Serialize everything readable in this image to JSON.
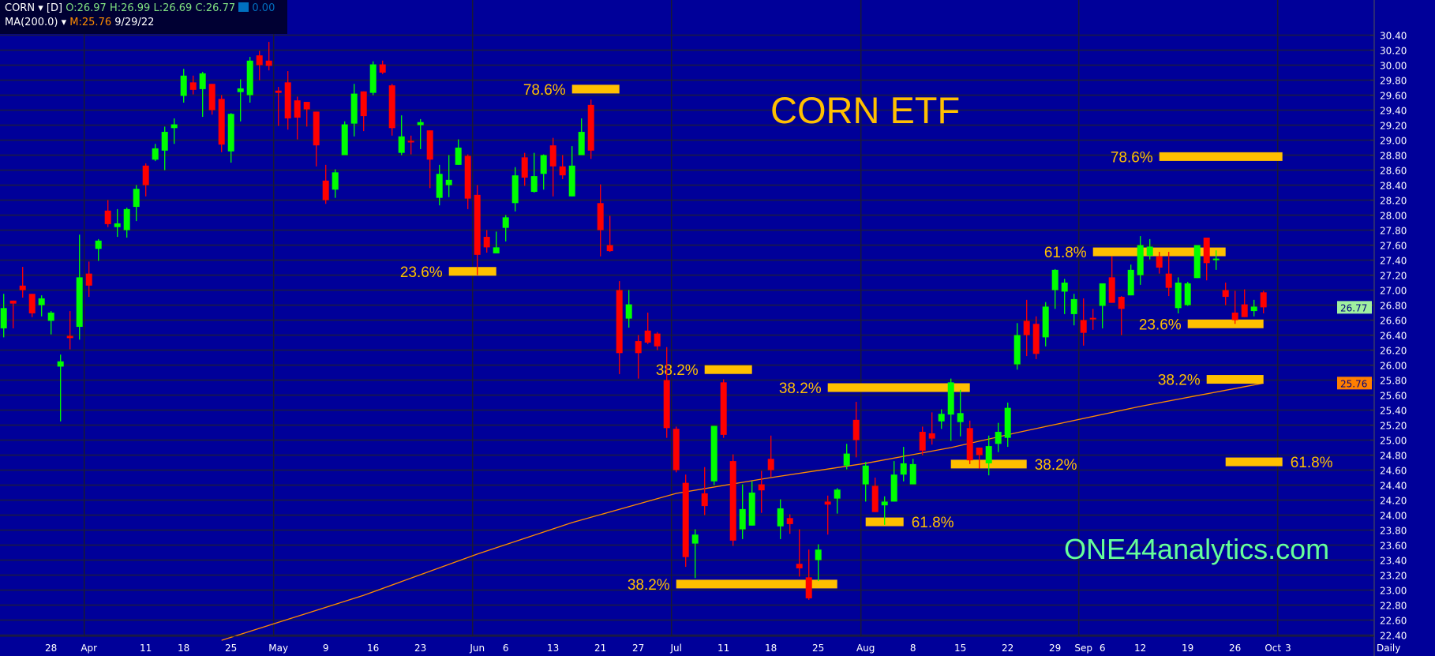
{
  "header": {
    "symbol": "CORN",
    "interval": "[D]",
    "open": "O:26.97",
    "high": "H:26.99",
    "low": "L:26.69",
    "close": "C:26.77",
    "change": "0.00",
    "ma_name": "MA(200.0)",
    "ma_value": "M:25.76",
    "date": "9/29/22"
  },
  "colors": {
    "background": "#000099",
    "up": "#00ff00",
    "down": "#ff0000",
    "fib": "#ffc000",
    "ma": "#ff8c00",
    "watermark": "#66ff99",
    "grid": "#1c1c40"
  },
  "title": "CORN ETF",
  "watermark": "ONE44analytics.com",
  "chart_data": {
    "type": "candlestick",
    "symbol": "CORN",
    "period": "Daily",
    "ylim": [
      22.3,
      30.5
    ],
    "last_price": "26.77",
    "ma_last": "25.76",
    "y_ticks": [
      "30.40",
      "30.20",
      "30.00",
      "29.80",
      "29.60",
      "29.40",
      "29.20",
      "29.00",
      "28.80",
      "28.60",
      "28.40",
      "28.20",
      "28.00",
      "27.80",
      "27.60",
      "27.40",
      "27.20",
      "27.00",
      "26.80",
      "26.60",
      "26.40",
      "26.20",
      "26.00",
      "25.80",
      "25.60",
      "25.40",
      "25.20",
      "25.00",
      "24.80",
      "24.60",
      "24.40",
      "24.20",
      "24.00",
      "23.80",
      "23.60",
      "23.40",
      "23.20",
      "23.00",
      "22.80",
      "22.60",
      "22.40"
    ],
    "x_ticks": [
      {
        "label": "28",
        "i": 5
      },
      {
        "label": "Apr",
        "i": 9
      },
      {
        "label": "11",
        "i": 15
      },
      {
        "label": "18",
        "i": 19
      },
      {
        "label": "25",
        "i": 24
      },
      {
        "label": "May",
        "i": 29
      },
      {
        "label": "9",
        "i": 34
      },
      {
        "label": "16",
        "i": 39
      },
      {
        "label": "23",
        "i": 44
      },
      {
        "label": "Jun",
        "i": 50
      },
      {
        "label": "6",
        "i": 53
      },
      {
        "label": "13",
        "i": 58
      },
      {
        "label": "21",
        "i": 63
      },
      {
        "label": "27",
        "i": 67
      },
      {
        "label": "Jul",
        "i": 71
      },
      {
        "label": "11",
        "i": 76
      },
      {
        "label": "18",
        "i": 81
      },
      {
        "label": "25",
        "i": 86
      },
      {
        "label": "Aug",
        "i": 91
      },
      {
        "label": "8",
        "i": 96
      },
      {
        "label": "15",
        "i": 101
      },
      {
        "label": "22",
        "i": 106
      },
      {
        "label": "29",
        "i": 111
      },
      {
        "label": "Sep",
        "i": 114
      },
      {
        "label": "6",
        "i": 116
      },
      {
        "label": "12",
        "i": 120
      },
      {
        "label": "19",
        "i": 125
      },
      {
        "label": "26",
        "i": 130
      },
      {
        "label": "Oct",
        "i": 134
      },
      {
        "label": "3",
        "i": 135
      }
    ],
    "month_separators": [
      9,
      29,
      50,
      71,
      91,
      114,
      135
    ],
    "candles_columns": [
      "open",
      "high",
      "low",
      "close",
      "color"
    ],
    "candles": [
      [
        26.49,
        26.95,
        26.37,
        26.76,
        "g"
      ],
      [
        26.86,
        26.86,
        26.49,
        26.82,
        "r"
      ],
      [
        27.06,
        27.31,
        26.9,
        27.0,
        "r"
      ],
      [
        26.95,
        26.95,
        26.64,
        26.69,
        "r"
      ],
      [
        26.8,
        26.93,
        26.65,
        26.89,
        "g"
      ],
      [
        26.59,
        26.72,
        26.41,
        26.7,
        "g"
      ],
      [
        25.98,
        26.14,
        25.25,
        26.05,
        "g"
      ],
      [
        26.39,
        26.72,
        26.21,
        26.36,
        "r"
      ],
      [
        26.51,
        27.74,
        26.34,
        27.17,
        "g"
      ],
      [
        27.22,
        27.38,
        26.91,
        27.06,
        "r"
      ],
      [
        27.55,
        27.68,
        27.39,
        27.66,
        "g"
      ],
      [
        28.06,
        28.2,
        27.84,
        27.88,
        "r"
      ],
      [
        27.84,
        28.08,
        27.71,
        27.89,
        "g"
      ],
      [
        27.8,
        28.1,
        27.7,
        28.08,
        "g"
      ],
      [
        28.11,
        28.4,
        27.92,
        28.35,
        "g"
      ],
      [
        28.66,
        28.69,
        28.25,
        28.4,
        "r"
      ],
      [
        28.74,
        28.95,
        28.72,
        28.89,
        "g"
      ],
      [
        28.86,
        29.18,
        28.6,
        29.11,
        "g"
      ],
      [
        29.16,
        29.29,
        28.95,
        29.21,
        "g"
      ],
      [
        29.59,
        29.95,
        29.5,
        29.86,
        "g"
      ],
      [
        29.77,
        29.86,
        29.61,
        29.67,
        "r"
      ],
      [
        29.68,
        29.91,
        29.31,
        29.89,
        "g"
      ],
      [
        29.75,
        29.75,
        29.34,
        29.4,
        "r"
      ],
      [
        29.55,
        29.6,
        28.84,
        28.94,
        "r"
      ],
      [
        28.85,
        29.36,
        28.7,
        29.35,
        "g"
      ],
      [
        29.64,
        29.81,
        29.25,
        29.69,
        "g"
      ],
      [
        29.6,
        30.11,
        29.5,
        30.06,
        "g"
      ],
      [
        30.13,
        30.19,
        29.8,
        30.0,
        "r"
      ],
      [
        30.06,
        30.31,
        29.93,
        29.99,
        "r"
      ],
      [
        29.66,
        29.71,
        29.19,
        29.63,
        "r"
      ],
      [
        29.77,
        29.92,
        29.14,
        29.29,
        "r"
      ],
      [
        29.53,
        29.58,
        29.01,
        29.3,
        "r"
      ],
      [
        29.51,
        29.51,
        29.18,
        29.41,
        "r"
      ],
      [
        29.38,
        29.38,
        28.65,
        28.93,
        "r"
      ],
      [
        28.46,
        28.67,
        28.15,
        28.2,
        "r"
      ],
      [
        28.34,
        28.61,
        28.23,
        28.57,
        "g"
      ],
      [
        28.8,
        29.25,
        28.8,
        29.21,
        "g"
      ],
      [
        29.22,
        29.75,
        29.05,
        29.62,
        "g"
      ],
      [
        29.65,
        29.65,
        29.12,
        29.32,
        "r"
      ],
      [
        29.63,
        30.05,
        29.6,
        30.01,
        "g"
      ],
      [
        30.01,
        30.06,
        29.88,
        29.9,
        "r"
      ],
      [
        29.73,
        29.75,
        29.06,
        29.16,
        "r"
      ],
      [
        28.83,
        29.33,
        28.8,
        29.05,
        "g"
      ],
      [
        28.99,
        29.06,
        28.81,
        28.98,
        "r"
      ],
      [
        29.2,
        29.28,
        28.88,
        29.24,
        "g"
      ],
      [
        29.13,
        29.13,
        28.36,
        28.74,
        "r"
      ],
      [
        28.23,
        28.67,
        28.13,
        28.55,
        "g"
      ],
      [
        28.4,
        28.8,
        28.24,
        28.47,
        "g"
      ],
      [
        28.67,
        29.01,
        28.67,
        28.9,
        "g"
      ],
      [
        28.79,
        28.81,
        28.08,
        28.22,
        "r"
      ],
      [
        28.27,
        28.4,
        27.2,
        27.47,
        "r"
      ],
      [
        27.71,
        27.8,
        27.5,
        27.57,
        "r"
      ],
      [
        27.49,
        27.78,
        27.49,
        27.57,
        "g"
      ],
      [
        27.83,
        28.0,
        27.65,
        27.97,
        "g"
      ],
      [
        28.16,
        28.64,
        28.05,
        28.53,
        "g"
      ],
      [
        28.77,
        28.83,
        28.39,
        28.5,
        "r"
      ],
      [
        28.31,
        28.83,
        28.3,
        28.52,
        "g"
      ],
      [
        28.55,
        28.81,
        28.34,
        28.8,
        "g"
      ],
      [
        28.93,
        29.03,
        28.25,
        28.65,
        "r"
      ],
      [
        28.65,
        28.8,
        28.48,
        28.53,
        "r"
      ],
      [
        28.25,
        28.92,
        28.25,
        28.66,
        "g"
      ],
      [
        28.8,
        29.29,
        28.8,
        29.11,
        "g"
      ],
      [
        29.47,
        29.54,
        28.75,
        28.86,
        "r"
      ],
      [
        28.16,
        28.41,
        27.45,
        27.8,
        "r"
      ],
      [
        27.6,
        27.99,
        27.51,
        27.52,
        "r"
      ],
      [
        27.0,
        27.12,
        25.88,
        26.16,
        "r"
      ],
      [
        26.62,
        27.0,
        26.5,
        26.81,
        "g"
      ],
      [
        26.32,
        26.4,
        25.82,
        26.16,
        "r"
      ],
      [
        26.46,
        26.7,
        26.28,
        26.3,
        "r"
      ],
      [
        26.42,
        26.44,
        26.2,
        26.25,
        "r"
      ],
      [
        25.8,
        26.24,
        25.03,
        25.16,
        "r"
      ],
      [
        25.15,
        25.18,
        24.57,
        24.6,
        "r"
      ],
      [
        24.43,
        24.54,
        23.31,
        23.44,
        "r"
      ],
      [
        23.62,
        23.81,
        23.16,
        23.74,
        "g"
      ],
      [
        24.29,
        24.64,
        24.0,
        24.12,
        "r"
      ],
      [
        24.45,
        25.19,
        24.4,
        25.19,
        "g"
      ],
      [
        25.77,
        25.81,
        25.03,
        25.07,
        "r"
      ],
      [
        24.72,
        24.81,
        23.59,
        23.66,
        "r"
      ],
      [
        23.81,
        24.41,
        23.68,
        24.08,
        "g"
      ],
      [
        23.86,
        24.45,
        23.86,
        24.3,
        "g"
      ],
      [
        24.41,
        24.59,
        24.03,
        24.33,
        "r"
      ],
      [
        24.75,
        25.06,
        24.51,
        24.6,
        "r"
      ],
      [
        23.85,
        24.21,
        23.68,
        24.09,
        "g"
      ],
      [
        23.96,
        24.01,
        23.75,
        23.88,
        "r"
      ],
      [
        23.35,
        23.81,
        23.18,
        23.29,
        "r"
      ],
      [
        23.17,
        23.54,
        22.87,
        22.89,
        "r"
      ],
      [
        23.4,
        23.61,
        23.12,
        23.54,
        "g"
      ],
      [
        24.18,
        24.26,
        23.74,
        24.14,
        "r"
      ],
      [
        24.22,
        24.36,
        24.02,
        24.34,
        "g"
      ],
      [
        24.66,
        24.95,
        24.61,
        24.82,
        "g"
      ],
      [
        25.27,
        25.51,
        24.77,
        25.0,
        "r"
      ],
      [
        24.41,
        24.71,
        24.18,
        24.66,
        "g"
      ],
      [
        24.39,
        24.5,
        24.04,
        24.04,
        "r"
      ],
      [
        24.13,
        24.25,
        23.87,
        24.18,
        "g"
      ],
      [
        24.18,
        24.72,
        24.18,
        24.54,
        "g"
      ],
      [
        24.54,
        24.91,
        24.45,
        24.69,
        "g"
      ],
      [
        24.41,
        24.75,
        24.41,
        24.68,
        "g"
      ],
      [
        25.11,
        25.18,
        24.8,
        24.86,
        "r"
      ],
      [
        25.09,
        25.37,
        24.94,
        25.02,
        "r"
      ],
      [
        25.25,
        25.41,
        25.15,
        25.35,
        "g"
      ],
      [
        25.34,
        25.82,
        24.99,
        25.77,
        "g"
      ],
      [
        25.24,
        25.67,
        25.05,
        25.36,
        "g"
      ],
      [
        25.16,
        25.26,
        24.68,
        24.73,
        "r"
      ],
      [
        24.9,
        24.9,
        24.62,
        24.8,
        "r"
      ],
      [
        24.69,
        25.06,
        24.53,
        24.92,
        "g"
      ],
      [
        24.95,
        25.23,
        24.84,
        25.11,
        "g"
      ],
      [
        25.03,
        25.5,
        24.91,
        25.43,
        "g"
      ],
      [
        26.01,
        26.56,
        25.94,
        26.4,
        "g"
      ],
      [
        26.59,
        26.87,
        26.12,
        26.4,
        "r"
      ],
      [
        26.55,
        26.65,
        26.08,
        26.15,
        "r"
      ],
      [
        26.37,
        26.84,
        26.25,
        26.78,
        "g"
      ],
      [
        27.0,
        27.28,
        26.75,
        27.27,
        "g"
      ],
      [
        26.98,
        27.15,
        26.68,
        27.1,
        "g"
      ],
      [
        26.68,
        26.95,
        26.53,
        26.88,
        "g"
      ],
      [
        26.6,
        26.89,
        26.26,
        26.43,
        "r"
      ],
      [
        26.63,
        26.75,
        26.47,
        26.61,
        "r"
      ],
      [
        26.79,
        27.09,
        26.49,
        27.09,
        "g"
      ],
      [
        27.17,
        27.45,
        26.83,
        26.83,
        "r"
      ],
      [
        26.91,
        26.92,
        26.4,
        26.75,
        "r"
      ],
      [
        26.93,
        27.34,
        26.93,
        27.27,
        "g"
      ],
      [
        27.2,
        27.72,
        27.07,
        27.6,
        "g"
      ],
      [
        27.46,
        27.68,
        27.41,
        27.58,
        "g"
      ],
      [
        27.45,
        27.51,
        27.22,
        27.3,
        "r"
      ],
      [
        27.22,
        27.51,
        26.92,
        27.03,
        "r"
      ],
      [
        26.76,
        27.17,
        26.69,
        27.1,
        "g"
      ],
      [
        26.8,
        27.11,
        26.79,
        27.09,
        "g"
      ],
      [
        27.16,
        27.6,
        27.16,
        27.6,
        "g"
      ],
      [
        27.7,
        27.7,
        27.13,
        27.36,
        "r"
      ],
      [
        27.4,
        27.53,
        27.27,
        27.42,
        "g"
      ],
      [
        27.0,
        27.1,
        26.8,
        26.91,
        "r"
      ],
      [
        26.7,
        26.99,
        26.55,
        26.6,
        "r"
      ],
      [
        26.81,
        27.01,
        26.64,
        26.64,
        "r"
      ],
      [
        26.72,
        26.87,
        26.65,
        26.78,
        "g"
      ],
      [
        26.97,
        26.99,
        26.69,
        26.77,
        "r"
      ]
    ],
    "ma_series": {
      "name": "MA(200.0)",
      "points": [
        [
          23,
          22.33
        ],
        [
          38,
          22.93
        ],
        [
          50,
          23.48
        ],
        [
          60,
          23.9
        ],
        [
          71,
          24.29
        ],
        [
          81,
          24.5
        ],
        [
          91,
          24.69
        ],
        [
          100,
          24.9
        ],
        [
          107,
          25.1
        ],
        [
          120,
          25.45
        ],
        [
          133,
          25.76
        ]
      ]
    },
    "fib_levels": [
      {
        "label": "78.6%",
        "price": 29.68,
        "from": 60,
        "to": 65,
        "side": "left"
      },
      {
        "label": "23.6%",
        "price": 27.25,
        "from": 47,
        "to": 52,
        "side": "left"
      },
      {
        "label": "38.2%",
        "price": 25.94,
        "from": 74,
        "to": 79,
        "side": "left"
      },
      {
        "label": "38.2%",
        "price": 23.08,
        "from": 71,
        "to": 88,
        "side": "left"
      },
      {
        "label": "38.2%",
        "price": 25.7,
        "from": 87,
        "to": 102,
        "side": "left"
      },
      {
        "label": "61.8%",
        "price": 23.91,
        "from": 91,
        "to": 95,
        "side": "right"
      },
      {
        "label": "38.2%",
        "price": 24.68,
        "from": 100,
        "to": 108,
        "side": "right"
      },
      {
        "label": "78.6%",
        "price": 28.78,
        "from": 122,
        "to": 135,
        "side": "left"
      },
      {
        "label": "61.8%",
        "price": 27.51,
        "from": 115,
        "to": 129,
        "side": "left"
      },
      {
        "label": "23.6%",
        "price": 26.55,
        "from": 125,
        "to": 133,
        "side": "left"
      },
      {
        "label": "38.2%",
        "price": 25.81,
        "from": 127,
        "to": 133,
        "side": "left"
      },
      {
        "label": "61.8%",
        "price": 24.71,
        "from": 129,
        "to": 135,
        "side": "right"
      }
    ]
  }
}
